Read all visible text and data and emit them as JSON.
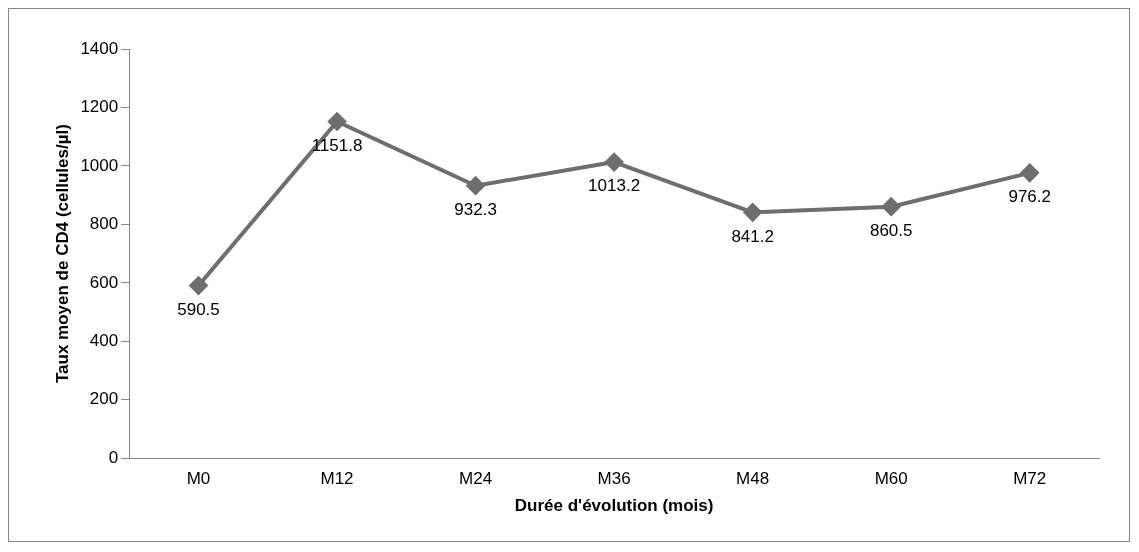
{
  "chart_data": {
    "type": "line",
    "xlabel": "Durée d'évolution (mois)",
    "ylabel": "Taux moyen de CD4 (cellules/µl)",
    "categories": [
      "M0",
      "M12",
      "M24",
      "M36",
      "M48",
      "M60",
      "M72"
    ],
    "series": [
      {
        "color": "#6e6e6e",
        "values": [
          590.5,
          1151.8,
          932.3,
          1013.2,
          841.2,
          860.5,
          976.2
        ]
      }
    ],
    "ylim": [
      0,
      1400
    ],
    "yticks": [
      0,
      200,
      400,
      600,
      800,
      1000,
      1200,
      1400
    ],
    "grid": false,
    "legend": false,
    "marker": "diamond",
    "line_style": "solid",
    "data_labels": true
  }
}
